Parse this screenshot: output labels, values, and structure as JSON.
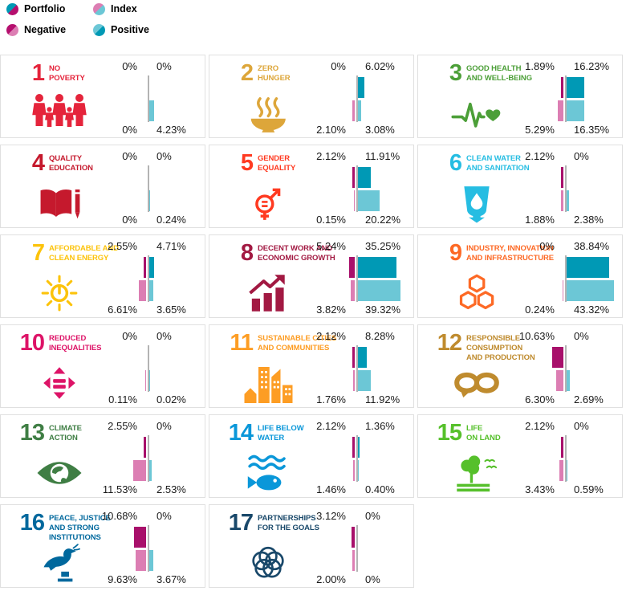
{
  "legend": {
    "items": [
      {
        "name": "portfolio-dot",
        "label": "Portfolio",
        "color_top_left": "#0099B5",
        "color_bottom_right": "#B50F6E"
      },
      {
        "name": "index-dot",
        "label": "Index",
        "color_top_left": "#DC7EB3",
        "color_bottom_right": "#6CC7D6"
      },
      {
        "name": "negative-dot",
        "label": "Negative",
        "color_top_left": "#B50F6E",
        "color_bottom_right": "#DC7EB3"
      },
      {
        "name": "positive-dot",
        "label": "Positive",
        "color_top_left": "#6CC7D6",
        "color_bottom_right": "#0099B5"
      }
    ]
  },
  "palette": {
    "portfolio_negative": "#A8106B",
    "portfolio_positive": "#0099B5",
    "index_negative": "#DC7EB3",
    "index_positive": "#6CC7D6",
    "axis": "#B3B3B3",
    "label_text": "#1A1A1A"
  },
  "chart_data": {
    "type": "bar",
    "layout": "17 SDG cards, each with a diverging horizontal bar pair: top bar = Portfolio, bottom bar = Index; bars extending left of the gray axis = Negative exposure, right = Positive exposure",
    "unit": "%",
    "series": [
      "Portfolio",
      "Index"
    ],
    "directions": [
      "Negative (left)",
      "Positive (right)"
    ],
    "goals": [
      {
        "number": "1",
        "title": "NO\nPOVERTY",
        "color": "#E5243B",
        "icon": "no-poverty-family-icon",
        "portfolio_negative": 0,
        "portfolio_positive": 0,
        "index_negative": 0,
        "index_positive": 4.23,
        "labels": {
          "portfolio_negative": "0%",
          "portfolio_positive": "0%",
          "index_negative": "0%",
          "index_positive": "4.23%"
        }
      },
      {
        "number": "2",
        "title": "ZERO\nHUNGER",
        "color": "#DDA63A",
        "icon": "zero-hunger-bowl-icon",
        "portfolio_negative": 0,
        "portfolio_positive": 6.02,
        "index_negative": 2.1,
        "index_positive": 3.08,
        "labels": {
          "portfolio_negative": "0%",
          "portfolio_positive": "6.02%",
          "index_negative": "2.10%",
          "index_positive": "3.08%"
        }
      },
      {
        "number": "3",
        "title": "GOOD HEALTH\nAND WELL-BEING",
        "color": "#4C9F38",
        "icon": "good-health-heartbeat-icon",
        "portfolio_negative": 1.89,
        "portfolio_positive": 16.23,
        "index_negative": 5.29,
        "index_positive": 16.35,
        "labels": {
          "portfolio_negative": "1.89%",
          "portfolio_positive": "16.23%",
          "index_negative": "5.29%",
          "index_positive": "16.35%"
        }
      },
      {
        "number": "4",
        "title": "QUALITY\nEDUCATION",
        "color": "#C5192D",
        "icon": "quality-education-book-icon",
        "portfolio_negative": 0,
        "portfolio_positive": 0,
        "index_negative": 0,
        "index_positive": 0.24,
        "labels": {
          "portfolio_negative": "0%",
          "portfolio_positive": "0%",
          "index_negative": "0%",
          "index_positive": "0.24%"
        }
      },
      {
        "number": "5",
        "title": "GENDER\nEQUALITY",
        "color": "#FF3A21",
        "icon": "gender-equality-symbol-icon",
        "portfolio_negative": 2.12,
        "portfolio_positive": 11.91,
        "index_negative": 0.15,
        "index_positive": 20.22,
        "labels": {
          "portfolio_negative": "2.12%",
          "portfolio_positive": "11.91%",
          "index_negative": "0.15%",
          "index_positive": "20.22%"
        }
      },
      {
        "number": "6",
        "title": "CLEAN WATER\nAND SANITATION",
        "color": "#26BDE2",
        "icon": "clean-water-drop-icon",
        "portfolio_negative": 2.12,
        "portfolio_positive": 0,
        "index_negative": 1.88,
        "index_positive": 2.38,
        "labels": {
          "portfolio_negative": "2.12%",
          "portfolio_positive": "0%",
          "index_negative": "1.88%",
          "index_positive": "2.38%"
        }
      },
      {
        "number": "7",
        "title": "AFFORDABLE AND\nCLEAN ENERGY",
        "color": "#FCC30B",
        "icon": "clean-energy-sun-icon",
        "portfolio_negative": 2.55,
        "portfolio_positive": 4.71,
        "index_negative": 6.61,
        "index_positive": 3.65,
        "labels": {
          "portfolio_negative": "2.55%",
          "portfolio_positive": "4.71%",
          "index_negative": "6.61%",
          "index_positive": "3.65%"
        }
      },
      {
        "number": "8",
        "title": "DECENT WORK AND\nECONOMIC GROWTH",
        "color": "#A21942",
        "icon": "economic-growth-chart-icon",
        "portfolio_negative": 5.24,
        "portfolio_positive": 35.25,
        "index_negative": 3.82,
        "index_positive": 39.32,
        "labels": {
          "portfolio_negative": "5.24%",
          "portfolio_positive": "35.25%",
          "index_negative": "3.82%",
          "index_positive": "39.32%"
        }
      },
      {
        "number": "9",
        "title": "INDUSTRY, INNOVATION\nAND INFRASTRUCTURE",
        "color": "#FD6925",
        "icon": "industry-cubes-icon",
        "portfolio_negative": 0,
        "portfolio_positive": 38.84,
        "index_negative": 0.24,
        "index_positive": 43.32,
        "labels": {
          "portfolio_negative": "0%",
          "portfolio_positive": "38.84%",
          "index_negative": "0.24%",
          "index_positive": "43.32%"
        }
      },
      {
        "number": "10",
        "title": "REDUCED\nINEQUALITIES",
        "color": "#DD1367",
        "icon": "reduced-inequalities-icon",
        "portfolio_negative": 0,
        "portfolio_positive": 0,
        "index_negative": 0.11,
        "index_positive": 0.02,
        "labels": {
          "portfolio_negative": "0%",
          "portfolio_positive": "0%",
          "index_negative": "0.11%",
          "index_positive": "0.02%"
        }
      },
      {
        "number": "11",
        "title": "SUSTAINABLE CITIES\nAND COMMUNITIES",
        "color": "#FD9D24",
        "icon": "sustainable-cities-icon",
        "portfolio_negative": 2.12,
        "portfolio_positive": 8.28,
        "index_negative": 1.76,
        "index_positive": 11.92,
        "labels": {
          "portfolio_negative": "2.12%",
          "portfolio_positive": "8.28%",
          "index_negative": "1.76%",
          "index_positive": "11.92%"
        }
      },
      {
        "number": "12",
        "title": "RESPONSIBLE\nCONSUMPTION\nAND PRODUCTION",
        "color": "#BF8B2E",
        "icon": "responsible-consumption-infinity-icon",
        "portfolio_negative": 10.63,
        "portfolio_positive": 0,
        "index_negative": 6.3,
        "index_positive": 2.69,
        "labels": {
          "portfolio_negative": "10.63%",
          "portfolio_positive": "0%",
          "index_negative": "6.30%",
          "index_positive": "2.69%"
        }
      },
      {
        "number": "13",
        "title": "CLIMATE\nACTION",
        "color": "#3F7E44",
        "icon": "climate-action-eye-icon",
        "portfolio_negative": 2.55,
        "portfolio_positive": 0,
        "index_negative": 11.53,
        "index_positive": 2.53,
        "labels": {
          "portfolio_negative": "2.55%",
          "portfolio_positive": "0%",
          "index_negative": "11.53%",
          "index_positive": "2.53%"
        }
      },
      {
        "number": "14",
        "title": "LIFE BELOW\nWATER",
        "color": "#0A97D9",
        "icon": "life-below-water-fish-icon",
        "portfolio_negative": 2.12,
        "portfolio_positive": 1.36,
        "index_negative": 1.46,
        "index_positive": 0.4,
        "labels": {
          "portfolio_negative": "2.12%",
          "portfolio_positive": "1.36%",
          "index_negative": "1.46%",
          "index_positive": "0.40%"
        }
      },
      {
        "number": "15",
        "title": "LIFE\nON LAND",
        "color": "#56C02B",
        "icon": "life-on-land-tree-icon",
        "portfolio_negative": 2.12,
        "portfolio_positive": 0,
        "index_negative": 3.43,
        "index_positive": 0.59,
        "labels": {
          "portfolio_negative": "2.12%",
          "portfolio_positive": "0%",
          "index_negative": "3.43%",
          "index_positive": "0.59%"
        }
      },
      {
        "number": "16",
        "title": "PEACE, JUSTICE\nAND STRONG\nINSTITUTIONS",
        "color": "#00689D",
        "icon": "peace-justice-dove-icon",
        "portfolio_negative": 10.68,
        "portfolio_positive": 0,
        "index_negative": 9.63,
        "index_positive": 3.67,
        "labels": {
          "portfolio_negative": "10.68%",
          "portfolio_positive": "0%",
          "index_negative": "9.63%",
          "index_positive": "3.67%"
        }
      },
      {
        "number": "17",
        "title": "PARTNERSHIPS\nFOR THE GOALS",
        "color": "#19486A",
        "icon": "partnerships-flower-icon",
        "portfolio_negative": 3.12,
        "portfolio_positive": 0,
        "index_negative": 2.0,
        "index_positive": 0,
        "labels": {
          "portfolio_negative": "3.12%",
          "portfolio_positive": "0%",
          "index_negative": "2.00%",
          "index_positive": "0%"
        }
      }
    ]
  }
}
